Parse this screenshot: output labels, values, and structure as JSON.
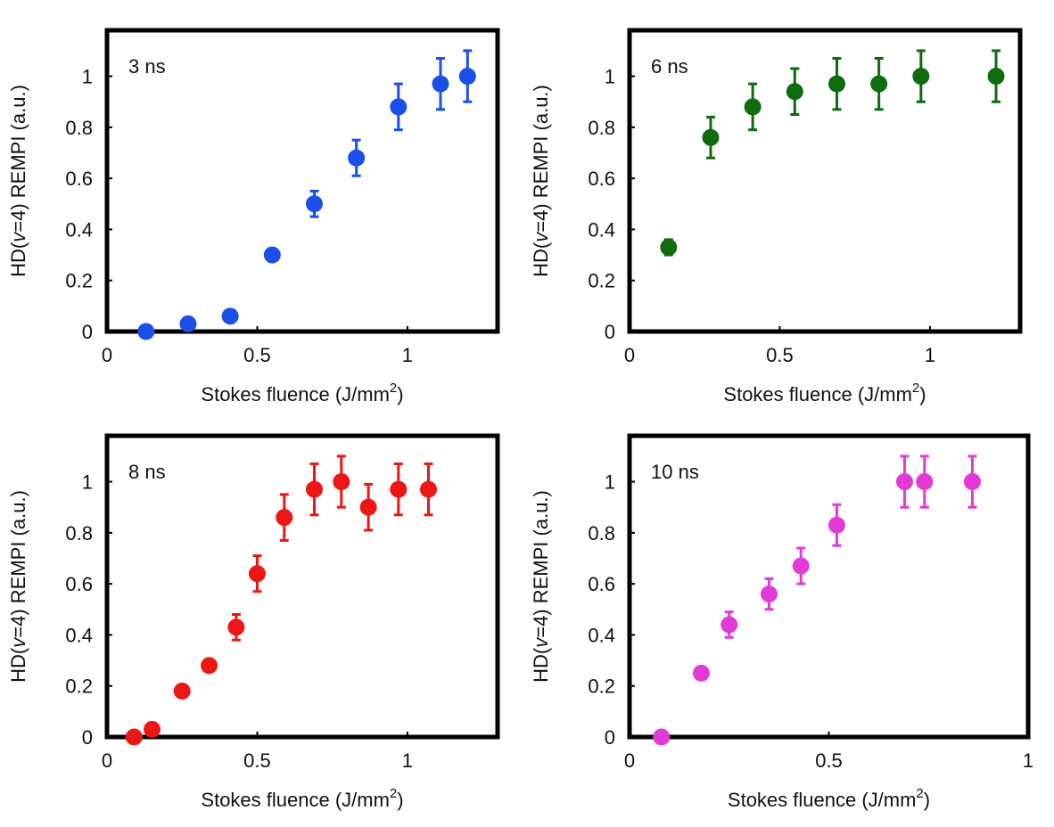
{
  "chart_data": [
    {
      "type": "scatter",
      "label": "3 ns",
      "xlabel": "Stokes fluence (J/mm",
      "xlabel_sup": "2",
      "xlabel_end": ")",
      "ylabel_pre": "HD(",
      "ylabel_var": "v",
      "ylabel_post": "=4) REMPI (a.u.)",
      "xlim": [
        0,
        1.3
      ],
      "ylim": [
        0,
        1.18
      ],
      "xticks": [
        "0",
        "0.5",
        "1"
      ],
      "xtick_values": [
        0,
        0.5,
        1
      ],
      "yticks": [
        "0",
        "0.2",
        "0.4",
        "0.6",
        "0.8",
        "1"
      ],
      "ytick_values": [
        0,
        0.2,
        0.4,
        0.6,
        0.8,
        1
      ],
      "color": "#1a4fe8",
      "points": [
        {
          "x": 0.13,
          "y": 0.0,
          "err": 0.0
        },
        {
          "x": 0.27,
          "y": 0.03,
          "err": 0.0
        },
        {
          "x": 0.41,
          "y": 0.06,
          "err": 0.0
        },
        {
          "x": 0.55,
          "y": 0.3,
          "err": 0.0
        },
        {
          "x": 0.69,
          "y": 0.5,
          "err": 0.05
        },
        {
          "x": 0.83,
          "y": 0.68,
          "err": 0.07
        },
        {
          "x": 0.97,
          "y": 0.88,
          "err": 0.09
        },
        {
          "x": 1.11,
          "y": 0.97,
          "err": 0.1
        },
        {
          "x": 1.2,
          "y": 1.0,
          "err": 0.1
        }
      ]
    },
    {
      "type": "scatter",
      "label": "6 ns",
      "xlabel": "Stokes fluence (J/mm",
      "xlabel_sup": "2",
      "xlabel_end": ")",
      "ylabel_pre": "HD(",
      "ylabel_var": "v",
      "ylabel_post": "=4) REMPI (a.u.)",
      "xlim": [
        0,
        1.3
      ],
      "ylim": [
        0,
        1.18
      ],
      "xticks": [
        "0",
        "0.5",
        "1"
      ],
      "xtick_values": [
        0,
        0.5,
        1
      ],
      "yticks": [
        "0",
        "0.2",
        "0.4",
        "0.6",
        "0.8",
        "1"
      ],
      "ytick_values": [
        0,
        0.2,
        0.4,
        0.6,
        0.8,
        1
      ],
      "color": "#0e6b0e",
      "points": [
        {
          "x": 0.13,
          "y": 0.33,
          "err": 0.03
        },
        {
          "x": 0.27,
          "y": 0.76,
          "err": 0.08
        },
        {
          "x": 0.41,
          "y": 0.88,
          "err": 0.09
        },
        {
          "x": 0.55,
          "y": 0.94,
          "err": 0.09
        },
        {
          "x": 0.69,
          "y": 0.97,
          "err": 0.1
        },
        {
          "x": 0.83,
          "y": 0.97,
          "err": 0.1
        },
        {
          "x": 0.97,
          "y": 1.0,
          "err": 0.1
        },
        {
          "x": 1.22,
          "y": 1.0,
          "err": 0.1
        }
      ]
    },
    {
      "type": "scatter",
      "label": "8 ns",
      "xlabel": "Stokes fluence (J/mm",
      "xlabel_sup": "2",
      "xlabel_end": ")",
      "ylabel_pre": "HD(",
      "ylabel_var": "v",
      "ylabel_post": "=4) REMPI (a.u.)",
      "xlim": [
        0,
        1.3
      ],
      "ylim": [
        0,
        1.18
      ],
      "xticks": [
        "0",
        "0.5",
        "1"
      ],
      "xtick_values": [
        0,
        0.5,
        1
      ],
      "yticks": [
        "0",
        "0.2",
        "0.4",
        "0.6",
        "0.8",
        "1"
      ],
      "ytick_values": [
        0,
        0.2,
        0.4,
        0.6,
        0.8,
        1
      ],
      "color": "#ee1515",
      "points": [
        {
          "x": 0.09,
          "y": 0.0,
          "err": 0.0
        },
        {
          "x": 0.15,
          "y": 0.03,
          "err": 0.0
        },
        {
          "x": 0.25,
          "y": 0.18,
          "err": 0.0
        },
        {
          "x": 0.34,
          "y": 0.28,
          "err": 0.0
        },
        {
          "x": 0.43,
          "y": 0.43,
          "err": 0.05
        },
        {
          "x": 0.5,
          "y": 0.64,
          "err": 0.07
        },
        {
          "x": 0.59,
          "y": 0.86,
          "err": 0.09
        },
        {
          "x": 0.69,
          "y": 0.97,
          "err": 0.1
        },
        {
          "x": 0.78,
          "y": 1.0,
          "err": 0.1
        },
        {
          "x": 0.87,
          "y": 0.9,
          "err": 0.09
        },
        {
          "x": 0.97,
          "y": 0.97,
          "err": 0.1
        },
        {
          "x": 1.07,
          "y": 0.97,
          "err": 0.1
        }
      ]
    },
    {
      "type": "scatter",
      "label": "10 ns",
      "xlabel": "Stokes fluence (J/mm",
      "xlabel_sup": "2",
      "xlabel_end": ")",
      "ylabel_pre": "HD(",
      "ylabel_var": "v",
      "ylabel_post": "=4) REMPI (a.u.)",
      "xlim": [
        0,
        1.0
      ],
      "ylim": [
        0,
        1.18
      ],
      "xticks": [
        "0",
        "0.5",
        "1"
      ],
      "xtick_values": [
        0,
        0.5,
        1
      ],
      "yticks": [
        "0",
        "0.2",
        "0.4",
        "0.6",
        "0.8",
        "1"
      ],
      "ytick_values": [
        0,
        0.2,
        0.4,
        0.6,
        0.8,
        1
      ],
      "color": "#e23ad6",
      "points": [
        {
          "x": 0.08,
          "y": 0.0,
          "err": 0.0
        },
        {
          "x": 0.18,
          "y": 0.25,
          "err": 0.0
        },
        {
          "x": 0.25,
          "y": 0.44,
          "err": 0.05
        },
        {
          "x": 0.35,
          "y": 0.56,
          "err": 0.06
        },
        {
          "x": 0.43,
          "y": 0.67,
          "err": 0.07
        },
        {
          "x": 0.52,
          "y": 0.83,
          "err": 0.08
        },
        {
          "x": 0.69,
          "y": 1.0,
          "err": 0.1
        },
        {
          "x": 0.74,
          "y": 1.0,
          "err": 0.1
        },
        {
          "x": 0.86,
          "y": 1.0,
          "err": 0.1
        }
      ]
    }
  ]
}
